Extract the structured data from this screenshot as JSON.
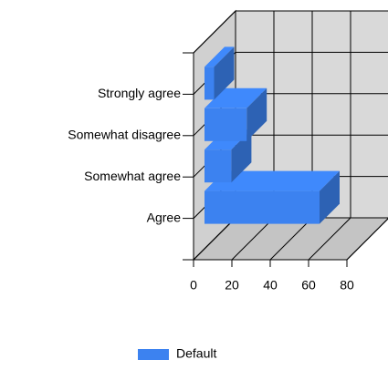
{
  "chart_data": {
    "type": "bar3d_horizontal",
    "categories": [
      "Agree",
      "Somewhat agree",
      "Somewhat disagree",
      "Strongly agree"
    ],
    "series": [
      {
        "name": "Default",
        "color": "#3c82f0",
        "values": [
          60,
          14,
          22,
          5
        ]
      }
    ],
    "xlim": [
      0,
      80
    ],
    "xticks": [
      0,
      20,
      40,
      60,
      80
    ],
    "grid": true,
    "legend": "bottom"
  }
}
